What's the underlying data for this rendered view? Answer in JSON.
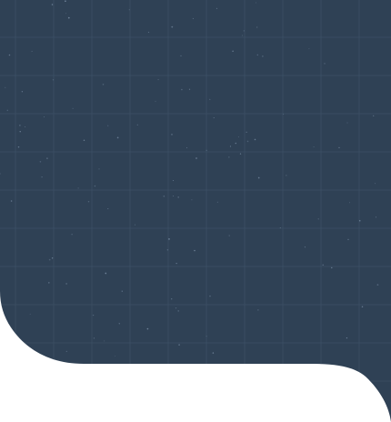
{
  "panel": {
    "name": "decorative-grid-panel",
    "background_color": "#2f4155",
    "grid_line_color": "#41556b",
    "speck_color": "#7f93aa",
    "page_background": "#ffffff"
  }
}
